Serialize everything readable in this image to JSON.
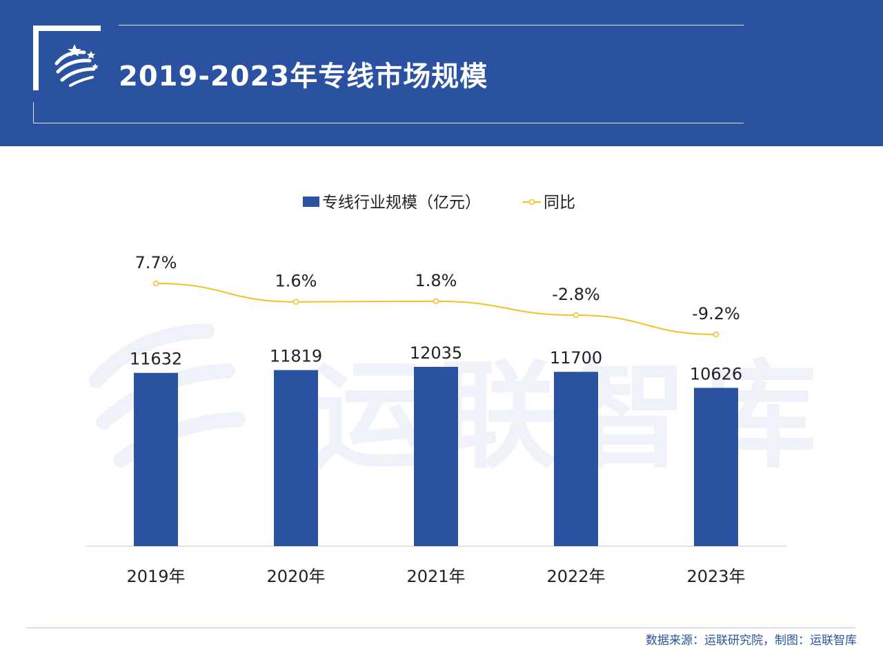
{
  "header": {
    "title": "2019-2023年专线市场规模"
  },
  "chart_data": {
    "type": "bar",
    "categories": [
      "2019年",
      "2020年",
      "2021年",
      "2022年",
      "2023年"
    ],
    "series": [
      {
        "name": "专线行业规模（亿元）",
        "kind": "bar",
        "values": [
          11632,
          11819,
          12035,
          11700,
          10626
        ],
        "labels": [
          "11632",
          "11819",
          "12035",
          "11700",
          "10626"
        ],
        "color": "#2b52a1"
      },
      {
        "name": "同比",
        "kind": "line",
        "values": [
          7.7,
          1.6,
          1.8,
          -2.8,
          -9.2
        ],
        "labels": [
          "7.7%",
          "1.6%",
          "1.8%",
          "-2.8%",
          "-9.2%"
        ],
        "color": "#f5c024"
      }
    ],
    "ylim": [
      0,
      12035
    ],
    "legend_position": "top-center",
    "grid": false
  },
  "watermark": {
    "text": "运联智库"
  },
  "footer": {
    "source": "数据来源：运联研究院，制图：运联智库"
  }
}
